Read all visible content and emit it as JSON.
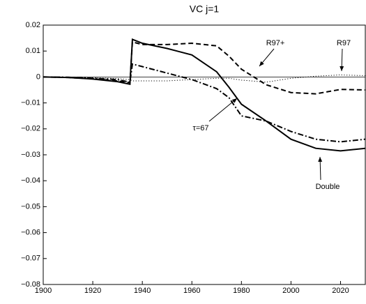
{
  "chart_data": {
    "type": "line",
    "title": "VC j=1",
    "x": [
      1900,
      1910,
      1920,
      1930,
      1935,
      1936,
      1940,
      1950,
      1960,
      1970,
      1975,
      1980,
      1990,
      2000,
      2010,
      2020,
      2030
    ],
    "series": [
      {
        "name": "Double",
        "color": "#000000",
        "style": "solid",
        "values": [
          0,
          -0.0002,
          -0.0008,
          -0.0018,
          -0.0028,
          0.0145,
          0.013,
          0.011,
          0.0085,
          0.002,
          -0.004,
          -0.0105,
          -0.017,
          -0.024,
          -0.0275,
          -0.0285,
          -0.0275
        ]
      },
      {
        "name": "R97+",
        "color": "#000000",
        "style": "dashed",
        "values": [
          0,
          -0.0002,
          -0.0007,
          -0.0015,
          -0.0022,
          0.0135,
          0.0125,
          0.0125,
          0.013,
          0.012,
          0.008,
          0.003,
          -0.003,
          -0.006,
          -0.0065,
          -0.0048,
          -0.005
        ]
      },
      {
        "name": "R97",
        "color": "#000000",
        "style": "dotted",
        "values": [
          0,
          -0.0001,
          -0.0003,
          -0.0006,
          -0.001,
          -0.0015,
          -0.0015,
          -0.0015,
          -0.001,
          -0.0005,
          -0.0005,
          -0.0012,
          -0.002,
          -0.0005,
          0.0003,
          0.0008,
          0.0005
        ]
      },
      {
        "name": "τ=67",
        "color": "#000000",
        "style": "dashdot",
        "values": [
          0,
          -0.0001,
          -0.0005,
          -0.001,
          -0.002,
          0.005,
          0.004,
          0.0015,
          -0.001,
          -0.0045,
          -0.008,
          -0.015,
          -0.017,
          -0.021,
          -0.024,
          -0.025,
          -0.024
        ]
      }
    ],
    "xlim": [
      1900,
      2030
    ],
    "ylim": [
      -0.08,
      0.02
    ],
    "xticks": [
      1900,
      1920,
      1940,
      1960,
      1980,
      2000,
      2020
    ],
    "yticks": [
      0.02,
      0.01,
      0,
      {
        "value": -0.01,
        "label": "−0.01"
      },
      {
        "value": -0.02,
        "label": "−0.02"
      },
      {
        "value": -0.03,
        "label": "−0.03"
      },
      {
        "value": -0.04,
        "label": "−0.04"
      },
      {
        "value": -0.05,
        "label": "−0.05"
      },
      {
        "value": -0.06,
        "label": "−0.06"
      },
      {
        "value": -0.07,
        "label": "−0.07"
      },
      {
        "value": -0.08,
        "label": "−0.08"
      }
    ],
    "zero_line": true,
    "grid": false
  }
}
